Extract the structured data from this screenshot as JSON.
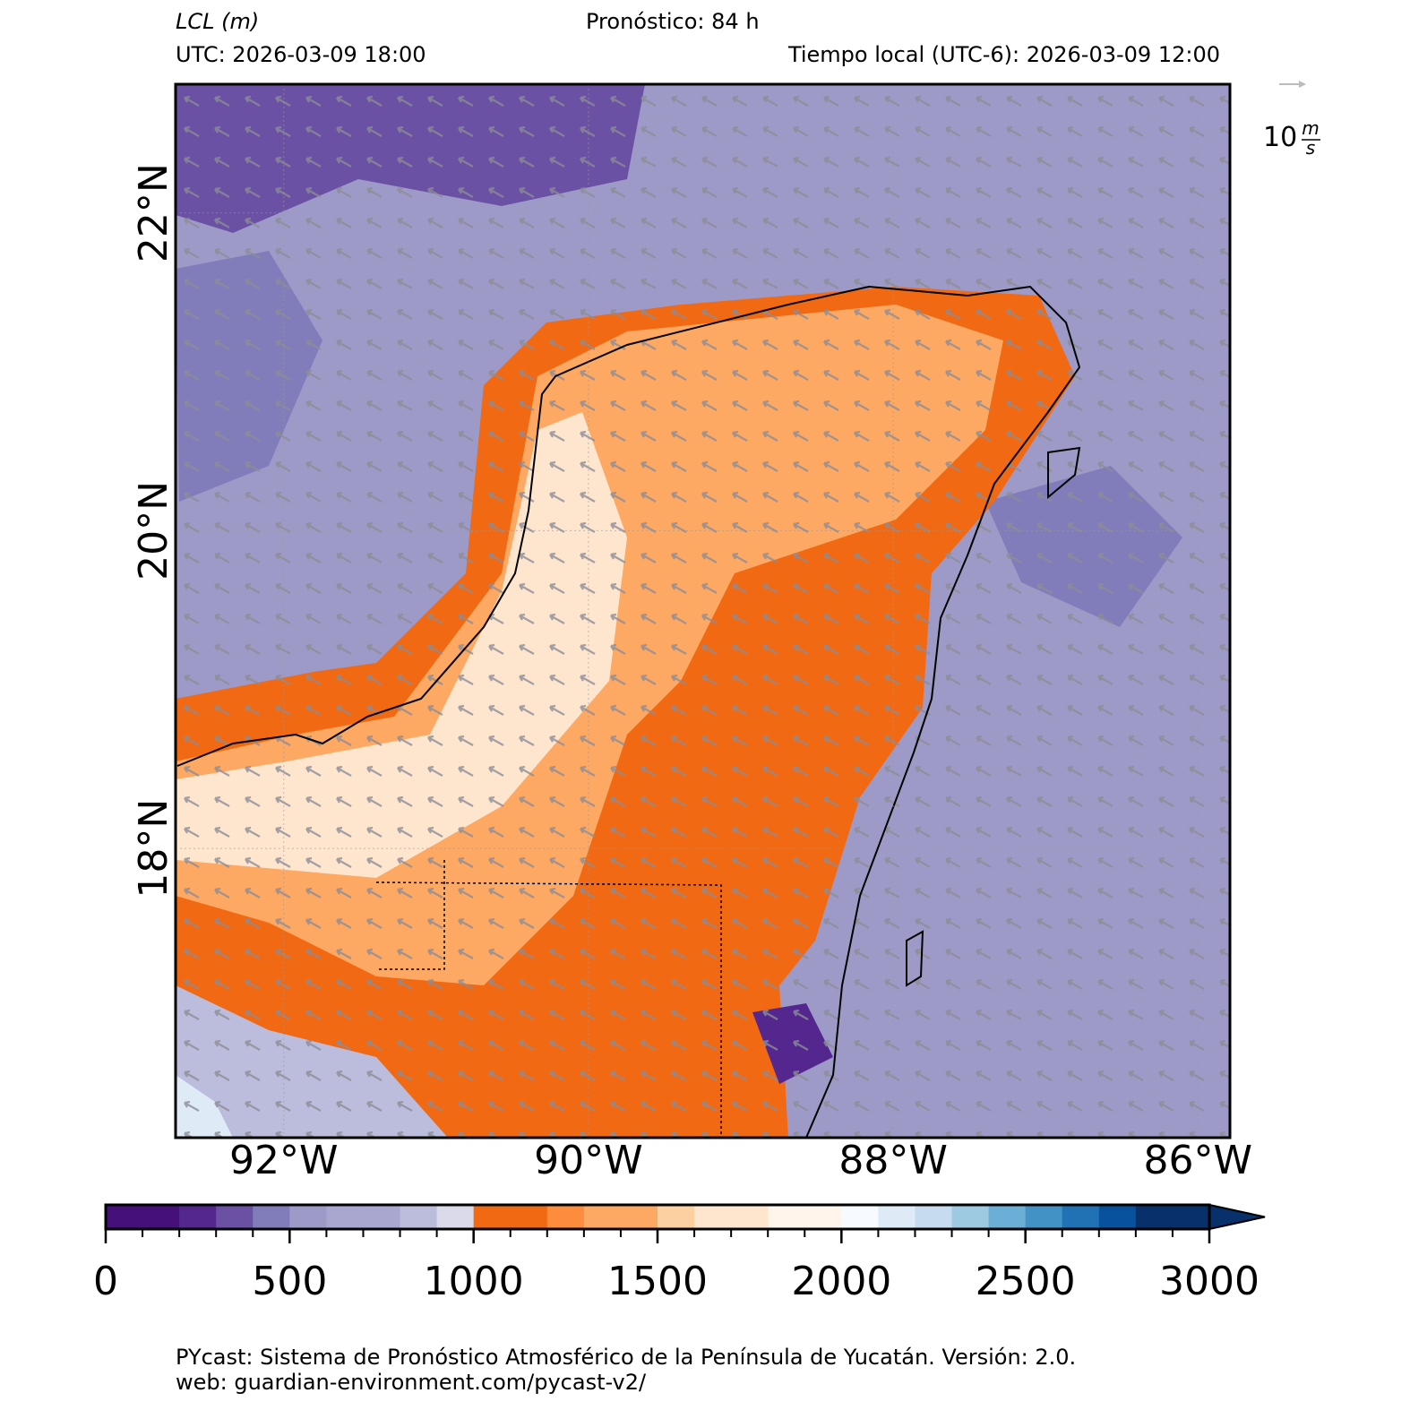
{
  "header": {
    "variable": "LCL (m)",
    "forecast": "Pronóstico: 84 h",
    "utc": "UTC:  2026-03-09 18:00",
    "local": "Tiempo local (UTC-6): 2026-03-09 12:00"
  },
  "wind_key": {
    "value": "10",
    "unit_num": "m",
    "unit_den": "s"
  },
  "map": {
    "xlim": [
      -92.71,
      -85.79
    ],
    "ylim": [
      16.18,
      22.81
    ],
    "xticks": [
      {
        "value": -92,
        "label": "92°W"
      },
      {
        "value": -90,
        "label": "90°W"
      },
      {
        "value": -88,
        "label": "88°W"
      },
      {
        "value": -86,
        "label": "86°W"
      }
    ],
    "yticks": [
      {
        "value": 18,
        "label": "18°N"
      },
      {
        "value": 20,
        "label": "20°N"
      },
      {
        "value": 22,
        "label": "22°N"
      }
    ]
  },
  "colorbar": {
    "range": [
      0,
      3000
    ],
    "bounds": [
      0,
      100,
      200,
      300,
      400,
      500,
      600,
      700,
      800,
      900,
      1000,
      1100,
      1200,
      1300,
      1400,
      1500,
      1600,
      1700,
      1800,
      1900,
      2000,
      2100,
      2200,
      2300,
      2400,
      2500,
      2600,
      2700,
      2800,
      2900,
      3000
    ],
    "colors": [
      "#45107a",
      "#45107a",
      "#54278f",
      "#6a51a3",
      "#807dba",
      "#9e9ac8",
      "#a9a6cf",
      "#a9a6cf",
      "#bcbddc",
      "#dadaeb",
      "#f16913",
      "#f16913",
      "#fd8d3c",
      "#fda863",
      "#fda863",
      "#fdd0a2",
      "#fee6ce",
      "#fee6ce",
      "#fff5eb",
      "#fff5eb",
      "#f7fbff",
      "#deebf7",
      "#c6dbef",
      "#9ecae1",
      "#6baed6",
      "#4292c6",
      "#2171b5",
      "#08519c",
      "#08306b",
      "#08306b"
    ],
    "ticks": [
      0,
      500,
      1000,
      1500,
      2000,
      2500,
      3000
    ]
  },
  "footer": {
    "line1": "PYcast: Sistema de Pronóstico Atmosférico de la Península de Yucatán. Versión: 2.0.",
    "line2": "web: guardian-environment.com/pycast-v2/"
  }
}
